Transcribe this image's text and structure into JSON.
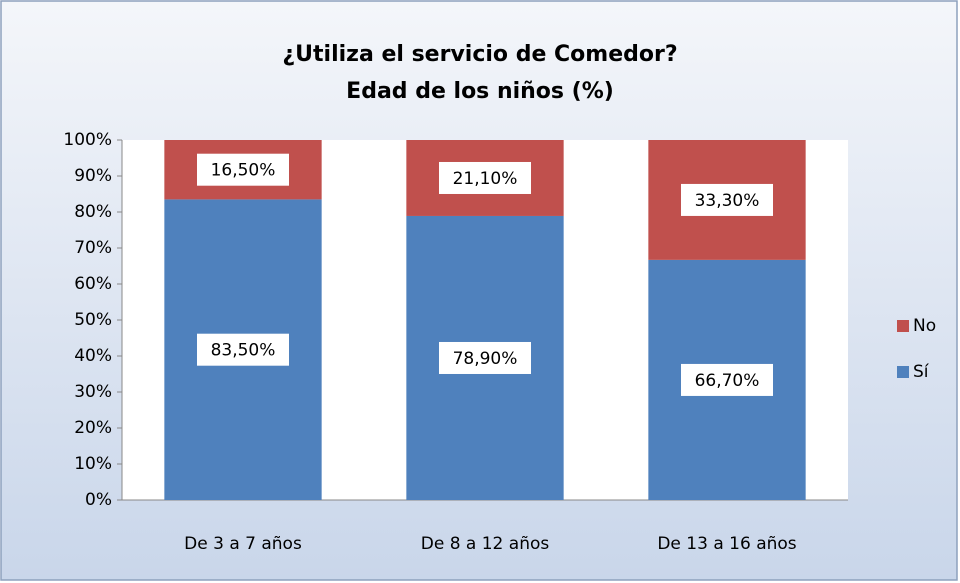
{
  "chart_data": {
    "type": "stacked_bar",
    "title": "¿Utiliza el servicio de Comedor?",
    "subtitle": "Edad de los niños (%)",
    "categories": [
      "De 3 a 7 años",
      "De 8 a 12 años",
      "De 13 a 16 años"
    ],
    "series": [
      {
        "name": "Sí",
        "color": "#4f81bd",
        "values": [
          83.5,
          78.9,
          66.7
        ],
        "value_labels": [
          "83,50%",
          "78,90%",
          "66,70%"
        ]
      },
      {
        "name": "No",
        "color": "#c0504d",
        "values": [
          16.5,
          21.1,
          33.3
        ],
        "value_labels": [
          "16,50%",
          "21,10%",
          "33,30%"
        ]
      }
    ],
    "ylim": [
      0,
      100
    ],
    "yticks": [
      {
        "value": 0,
        "label": "0%"
      },
      {
        "value": 10,
        "label": "10%"
      },
      {
        "value": 20,
        "label": "20%"
      },
      {
        "value": 30,
        "label": "30%"
      },
      {
        "value": 40,
        "label": "40%"
      },
      {
        "value": 50,
        "label": "50%"
      },
      {
        "value": 60,
        "label": "60%"
      },
      {
        "value": 70,
        "label": "70%"
      },
      {
        "value": 80,
        "label": "80%"
      },
      {
        "value": 90,
        "label": "90%"
      },
      {
        "value": 100,
        "label": "100%"
      }
    ],
    "legend": "right"
  }
}
